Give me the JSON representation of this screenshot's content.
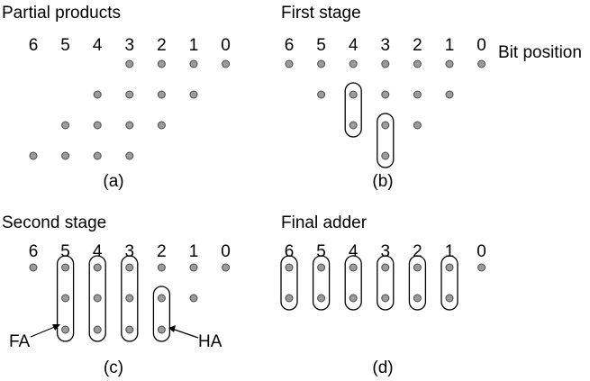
{
  "bit_position_label": "Bit position",
  "bit_numbers": [
    "6",
    "5",
    "4",
    "3",
    "2",
    "1",
    "0"
  ],
  "panels": [
    {
      "id": "a",
      "title": "Partial products",
      "caption": "(a)",
      "rows": [
        [
          3,
          2,
          1,
          0
        ],
        [
          4,
          3,
          2,
          1
        ],
        [
          5,
          4,
          3,
          2
        ],
        [
          6,
          5,
          4,
          3
        ]
      ],
      "groups": []
    },
    {
      "id": "b",
      "title": "First stage",
      "caption": "(b)",
      "rows": [
        [
          6,
          5,
          4,
          3,
          2,
          1,
          0
        ],
        [
          5,
          4,
          3,
          2,
          1
        ],
        [
          4,
          3,
          2
        ],
        [
          3
        ]
      ],
      "groups": [
        {
          "bit": 4,
          "from_row": 1,
          "to_row": 2
        },
        {
          "bit": 3,
          "from_row": 2,
          "to_row": 3
        }
      ]
    },
    {
      "id": "c",
      "title": "Second stage",
      "caption": "(c)",
      "rows": [
        [
          6,
          5,
          4,
          3,
          2,
          1,
          0
        ],
        [
          5,
          4,
          3,
          2,
          1
        ],
        [
          5,
          4,
          3,
          2
        ]
      ],
      "groups": [
        {
          "bit": 5,
          "from_row": 0,
          "to_row": 2
        },
        {
          "bit": 4,
          "from_row": 0,
          "to_row": 2
        },
        {
          "bit": 3,
          "from_row": 0,
          "to_row": 2
        },
        {
          "bit": 2,
          "from_row": 1,
          "to_row": 2
        }
      ],
      "labels": {
        "full_adder": "FA",
        "half_adder": "HA"
      }
    },
    {
      "id": "d",
      "title": "Final adder",
      "caption": "(d)",
      "rows": [
        [
          6,
          5,
          4,
          3,
          2,
          1,
          0
        ],
        [
          6,
          5,
          4,
          3,
          2,
          1
        ]
      ],
      "groups": [
        {
          "bit": 6,
          "from_row": 0,
          "to_row": 1
        },
        {
          "bit": 5,
          "from_row": 0,
          "to_row": 1
        },
        {
          "bit": 4,
          "from_row": 0,
          "to_row": 1
        },
        {
          "bit": 3,
          "from_row": 0,
          "to_row": 1
        },
        {
          "bit": 2,
          "from_row": 0,
          "to_row": 1
        },
        {
          "bit": 1,
          "from_row": 0,
          "to_row": 1
        }
      ]
    }
  ]
}
